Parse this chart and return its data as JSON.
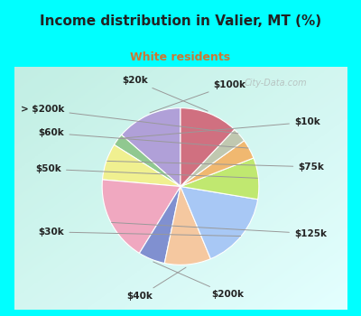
{
  "title": "Income distribution in Valier, MT (%)",
  "subtitle": "White residents",
  "watermark": "© City-Data.com",
  "background_cyan": "#00FFFF",
  "title_color": "#222222",
  "subtitle_color": "#cc7733",
  "labels": [
    "$100k",
    "$10k",
    "$75k",
    "$125k",
    "$200k",
    "$40k",
    "$30k",
    "$50k",
    "$60k",
    "> $200k",
    "$20k"
  ],
  "values": [
    13.5,
    2.5,
    7.5,
    17.5,
    5.5,
    9.5,
    16.0,
    8.5,
    4.0,
    3.0,
    12.0
  ],
  "colors": [
    "#b0a0d8",
    "#90c890",
    "#f0f090",
    "#f0a8c0",
    "#8090d0",
    "#f5c8a0",
    "#a8c8f5",
    "#c0e870",
    "#f0b870",
    "#c0c8b0",
    "#d07080"
  ],
  "title_fontsize": 11,
  "subtitle_fontsize": 9,
  "label_fontsize": 7.5
}
